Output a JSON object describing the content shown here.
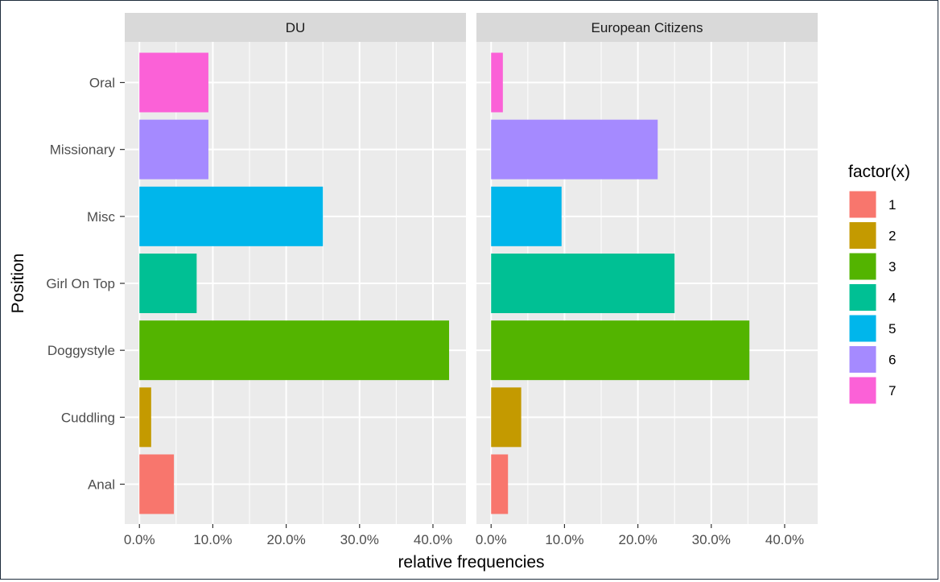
{
  "chart_data": {
    "type": "bar",
    "orientation": "horizontal",
    "facets": [
      "DU",
      "European Citizens"
    ],
    "categories": [
      "Anal",
      "Cuddling",
      "Doggystyle",
      "Girl On Top",
      "Misc",
      "Missionary",
      "Oral"
    ],
    "category_factor": [
      "1",
      "2",
      "3",
      "4",
      "5",
      "6",
      "7"
    ],
    "series": [
      {
        "name": "DU",
        "values": [
          0.047,
          0.016,
          0.422,
          0.078,
          0.25,
          0.094,
          0.094
        ]
      },
      {
        "name": "European Citizens",
        "values": [
          0.023,
          0.041,
          0.352,
          0.25,
          0.096,
          0.227,
          0.016
        ]
      }
    ],
    "xlabel": "relative frequencies",
    "ylabel": "Position",
    "xlim": [
      -0.02,
      0.445
    ],
    "x_ticks": [
      0,
      0.1,
      0.2,
      0.3,
      0.4
    ],
    "x_tick_labels": [
      "0.0%",
      "10.0%",
      "20.0%",
      "30.0%",
      "40.0%"
    ],
    "grid": true,
    "legend": {
      "title": "factor(x)",
      "position": "right",
      "entries": [
        "1",
        "2",
        "3",
        "4",
        "5",
        "6",
        "7"
      ],
      "colors": [
        "#F8766D",
        "#C49A00",
        "#53B400",
        "#00C094",
        "#00B6EB",
        "#A58AFF",
        "#FB61D7"
      ]
    },
    "panel_background": "#EBEBEB",
    "strip_background": "#D9D9D9"
  }
}
